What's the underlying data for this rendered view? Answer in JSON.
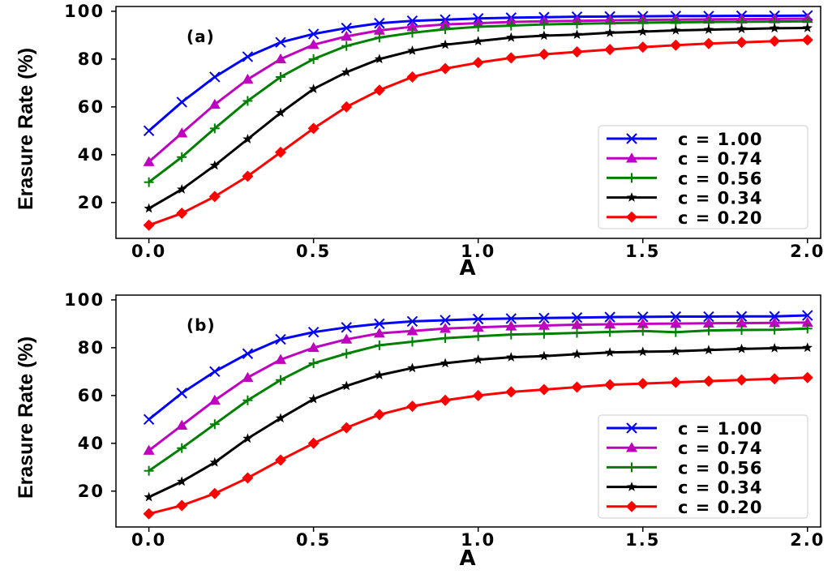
{
  "chart_data": [
    {
      "type": "line",
      "panel_label": "(a)",
      "xlabel": "A",
      "ylabel": "Erasure Rate (%)",
      "xlim": [
        -0.1,
        2.04
      ],
      "ylim": [
        5,
        102
      ],
      "xticks": [
        0.0,
        0.5,
        1.0,
        1.5,
        2.0
      ],
      "xtick_labels": [
        "0.0",
        "0.5",
        "1.0",
        "1.5",
        "2.0"
      ],
      "yticks": [
        20,
        40,
        60,
        80,
        100
      ],
      "ytick_labels": [
        "20",
        "40",
        "60",
        "80",
        "100"
      ],
      "legend_position": "lower-right",
      "x": [
        0.0,
        0.1,
        0.2,
        0.3,
        0.4,
        0.5,
        0.6,
        0.7,
        0.8,
        0.9,
        1.0,
        1.1,
        1.2,
        1.3,
        1.4,
        1.5,
        1.6,
        1.7,
        1.8,
        1.9,
        2.0
      ],
      "series": [
        {
          "name": "c = 1.00",
          "color": "#0000ff",
          "marker": "x",
          "values": [
            50,
            62,
            72.5,
            81,
            87,
            90.5,
            93,
            95,
            96,
            96.5,
            97,
            97.3,
            97.5,
            97.7,
            97.8,
            97.9,
            98,
            98,
            98.1,
            98.1,
            98.2
          ]
        },
        {
          "name": "c = 0.74",
          "color": "#bf00bf",
          "marker": "triangle",
          "values": [
            37,
            49,
            61,
            71.5,
            80,
            86,
            89.5,
            92,
            93.5,
            94.5,
            95,
            95.5,
            95.8,
            96,
            96.2,
            96.4,
            96.5,
            96.6,
            96.7,
            96.8,
            96.9
          ]
        },
        {
          "name": "c = 0.56",
          "color": "#008000",
          "marker": "plus",
          "values": [
            28.5,
            39,
            51,
            62.5,
            72.5,
            80,
            85.5,
            89,
            91,
            92.5,
            93.5,
            94,
            94.5,
            94.8,
            95,
            95.2,
            95.4,
            95.5,
            95.6,
            95.7,
            95.8
          ]
        },
        {
          "name": "c = 0.34",
          "color": "#000000",
          "marker": "star",
          "values": [
            17.5,
            25.5,
            35.5,
            46.5,
            57.5,
            67.5,
            74.5,
            80,
            83.5,
            86,
            87.5,
            89,
            89.8,
            90.2,
            91,
            91.5,
            92,
            92.3,
            92.6,
            92.9,
            93
          ]
        },
        {
          "name": "c = 0.20",
          "color": "#ff0000",
          "marker": "diamond",
          "values": [
            10.5,
            15.5,
            22.5,
            31,
            41,
            51,
            60,
            67,
            72.5,
            76,
            78.5,
            80.5,
            82,
            83,
            84,
            85,
            85.8,
            86.5,
            87,
            87.5,
            88
          ]
        }
      ]
    },
    {
      "type": "line",
      "panel_label": "(b)",
      "xlabel": "A",
      "ylabel": "Erasure Rate (%)",
      "xlim": [
        -0.1,
        2.04
      ],
      "ylim": [
        5,
        102
      ],
      "xticks": [
        0.0,
        0.5,
        1.0,
        1.5,
        2.0
      ],
      "xtick_labels": [
        "0.0",
        "0.5",
        "1.0",
        "1.5",
        "2.0"
      ],
      "yticks": [
        20,
        40,
        60,
        80,
        100
      ],
      "ytick_labels": [
        "20",
        "40",
        "60",
        "80",
        "100"
      ],
      "legend_position": "lower-right",
      "x": [
        0.0,
        0.1,
        0.2,
        0.3,
        0.4,
        0.5,
        0.6,
        0.7,
        0.8,
        0.9,
        1.0,
        1.1,
        1.2,
        1.3,
        1.4,
        1.5,
        1.6,
        1.7,
        1.8,
        1.9,
        2.0
      ],
      "series": [
        {
          "name": "c = 1.00",
          "color": "#0000ff",
          "marker": "x",
          "values": [
            50,
            61,
            70,
            77.5,
            83.5,
            86.5,
            88.5,
            90,
            91,
            91.5,
            92,
            92.2,
            92.4,
            92.6,
            92.8,
            92.9,
            93,
            93,
            93.1,
            93.1,
            93.5
          ]
        },
        {
          "name": "c = 0.74",
          "color": "#bf00bf",
          "marker": "triangle",
          "values": [
            37,
            47.5,
            58,
            67.5,
            75,
            80,
            83.5,
            86,
            87,
            88,
            88.5,
            89,
            89.3,
            89.6,
            89.8,
            90,
            90.1,
            90.2,
            90.3,
            90.4,
            90.5
          ]
        },
        {
          "name": "c = 0.56",
          "color": "#008000",
          "marker": "plus",
          "values": [
            28.5,
            38,
            48,
            58,
            66.5,
            73.5,
            77.5,
            81,
            82.5,
            84,
            84.8,
            85.5,
            85.8,
            86.2,
            86.6,
            87,
            86.5,
            87.2,
            87.4,
            87.5,
            88
          ]
        },
        {
          "name": "c = 0.34",
          "color": "#000000",
          "marker": "star",
          "values": [
            17.5,
            24,
            32,
            42,
            50.5,
            58.5,
            64,
            68.5,
            71.5,
            73.5,
            75,
            76,
            76.5,
            77.3,
            78,
            78.3,
            78.5,
            79,
            79.5,
            79.8,
            80
          ]
        },
        {
          "name": "c = 0.20",
          "color": "#ff0000",
          "marker": "diamond",
          "values": [
            10.5,
            14,
            19,
            25.5,
            33,
            40,
            46.5,
            52,
            55.5,
            58,
            60,
            61.5,
            62.5,
            63.5,
            64.5,
            65,
            65.5,
            66,
            66.5,
            67,
            67.5
          ]
        }
      ]
    }
  ]
}
